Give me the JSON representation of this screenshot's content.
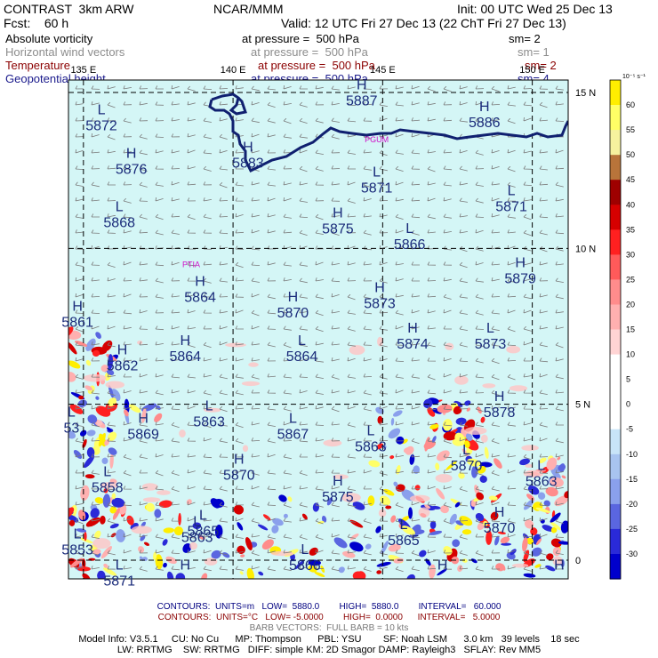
{
  "header": {
    "model": "CONTRAST  3km ARW",
    "org": "NCAR/MMM",
    "init": "Init: 00 UTC Wed 25 Dec 13",
    "fcst": "Fcst:    60 h",
    "valid": "Valid: 12 UTC Fri 27 Dec 13 (22 ChT Fri 27 Dec 13)"
  },
  "fields": [
    {
      "name": "Absolute vorticity",
      "pressure": "at pressure =  500 hPa",
      "sm": "sm= 2",
      "color": "#000000"
    },
    {
      "name": "Horizontal wind vectors",
      "pressure": "at pressure =  500 hPa",
      "sm": "sm= 1",
      "color": "#8c8c8c"
    },
    {
      "name": "Temperature",
      "pressure": "at pressure =  500 hPa",
      "sm": "sm= 2",
      "color": "#8b0000"
    },
    {
      "name": "Geopotential height",
      "pressure": "at pressure =  500 hPa",
      "sm": "sm= 4",
      "color": "#1a1a8c"
    }
  ],
  "footer": {
    "contours_height": "CONTOURS:  UNITS=m   LOW=  5880.0        HIGH=  5880.0        INTERVAL=   60.000",
    "contours_temp": "CONTOURS:  UNITS=°C   LOW= -5.0000        HIGH=  0.0000      INTERVAL=   5.0000",
    "barb": "BARB VECTORS:  FULL BARB = 10 kts",
    "model_info_1": "Model Info: V3.5.1     CU: No Cu      MP: Thompson      PBL: YSU        SF: Noah LSM      3.0 km   39 levels    18 sec",
    "model_info_2": "LW: RRTMG    SW: RRTMG   DIFF: simple KM: 2D Smagor DAMP: Rayleigh3   SFLAY: Rev MM5"
  },
  "chart_data": {
    "type": "heatmap",
    "lon_labels": [
      {
        "lon": 135,
        "text": "135 E"
      },
      {
        "lon": 140,
        "text": "140 E"
      },
      {
        "lon": 145,
        "text": "145 E"
      },
      {
        "lon": 150,
        "text": "150 E"
      }
    ],
    "lat_labels": [
      {
        "lat": 15,
        "text": "15 N"
      },
      {
        "lat": 10,
        "text": "10 N"
      },
      {
        "lat": 5,
        "text": "5 N"
      },
      {
        "lat": 0,
        "text": "0"
      }
    ],
    "lon_range": [
      134.5,
      151.2
    ],
    "lat_range": [
      -0.6,
      15.4
    ],
    "colorbar": {
      "unit": "10⁻⁵ s⁻¹",
      "levels": [
        {
          "label": "60",
          "color": "#ffee00"
        },
        {
          "label": "55",
          "color": "#ffff66"
        },
        {
          "label": "50",
          "color": "#f6f29e"
        },
        {
          "label": "45",
          "color": "#b8743a"
        },
        {
          "label": "40",
          "color": "#9e0000"
        },
        {
          "label": "35",
          "color": "#d60000"
        },
        {
          "label": "30",
          "color": "#ff2020"
        },
        {
          "label": "25",
          "color": "#ff5a5a"
        },
        {
          "label": "20",
          "color": "#ff8c8c"
        },
        {
          "label": "15",
          "color": "#ffb0b0"
        },
        {
          "label": "10",
          "color": "#ffd4d4"
        },
        {
          "label": "5",
          "color": "#ffffff"
        },
        {
          "label": "0",
          "color": "#ffffff"
        },
        {
          "label": "-5",
          "color": "#ffffff"
        },
        {
          "label": "-10",
          "color": "#c8e4f8"
        },
        {
          "label": "-15",
          "color": "#a8c4f0"
        },
        {
          "label": "-20",
          "color": "#8aa0ec"
        },
        {
          "label": "-25",
          "color": "#5a66e0"
        },
        {
          "label": "-30",
          "color": "#2a2ad8"
        },
        {
          "label": "",
          "color": "#0000cc"
        }
      ]
    },
    "background_color": "#d4f6f6",
    "height_contour": {
      "value": 5880,
      "color": "#102070"
    },
    "cities": [
      {
        "name": "PTIA",
        "lon": 138.6,
        "lat": 9.4
      },
      {
        "name": "PGUM",
        "lon": 144.8,
        "lat": 13.4
      }
    ],
    "extrema": [
      {
        "type": "L",
        "value": "5872",
        "lon": 135.6,
        "lat": 14.3
      },
      {
        "type": "H",
        "value": "5876",
        "lon": 136.6,
        "lat": 12.9
      },
      {
        "type": "H",
        "value": "5883",
        "lon": 140.5,
        "lat": 13.1
      },
      {
        "type": "H",
        "value": "5887",
        "lon": 144.3,
        "lat": 15.1
      },
      {
        "type": "H",
        "value": "5886",
        "lon": 148.4,
        "lat": 14.4
      },
      {
        "type": "L",
        "value": "5871",
        "lon": 144.8,
        "lat": 12.3
      },
      {
        "type": "L",
        "value": "5871",
        "lon": 149.3,
        "lat": 11.7
      },
      {
        "type": "L",
        "value": "5868",
        "lon": 136.2,
        "lat": 11.2
      },
      {
        "type": "H",
        "value": "5875",
        "lon": 143.5,
        "lat": 11.0
      },
      {
        "type": "L",
        "value": "5866",
        "lon": 145.9,
        "lat": 10.5
      },
      {
        "type": "H",
        "value": "5879",
        "lon": 149.6,
        "lat": 9.4
      },
      {
        "type": "H",
        "value": "5864",
        "lon": 138.9,
        "lat": 8.8
      },
      {
        "type": "H",
        "value": "5870",
        "lon": 142.0,
        "lat": 8.3
      },
      {
        "type": "H",
        "value": "5873",
        "lon": 144.9,
        "lat": 8.6
      },
      {
        "type": "H",
        "value": "5861",
        "lon": 134.8,
        "lat": 8.0
      },
      {
        "type": "H",
        "value": "5874",
        "lon": 146.0,
        "lat": 7.3
      },
      {
        "type": "L",
        "value": "5873",
        "lon": 148.6,
        "lat": 7.3
      },
      {
        "type": "H",
        "value": "5862",
        "lon": 136.3,
        "lat": 6.6
      },
      {
        "type": "H",
        "value": "5864",
        "lon": 138.4,
        "lat": 6.9
      },
      {
        "type": "L",
        "value": "5864",
        "lon": 142.3,
        "lat": 6.9
      },
      {
        "type": "H",
        "value": "5878",
        "lon": 148.9,
        "lat": 5.1
      },
      {
        "type": "H",
        "value": "5869",
        "lon": 137.0,
        "lat": 4.4
      },
      {
        "type": "L",
        "value": "5863",
        "lon": 139.2,
        "lat": 4.8
      },
      {
        "type": "L",
        "value": "5867",
        "lon": 142.0,
        "lat": 4.4
      },
      {
        "type": "L",
        "value": "5863",
        "lon": 144.6,
        "lat": 4.0
      },
      {
        "type": "L",
        "value": "5870",
        "lon": 147.8,
        "lat": 3.4
      },
      {
        "type": "L",
        "value": "5863",
        "lon": 150.3,
        "lat": 2.9
      },
      {
        "type": "L",
        "value": "5858",
        "lon": 135.8,
        "lat": 2.7
      },
      {
        "type": "H",
        "value": "5870",
        "lon": 140.2,
        "lat": 3.1
      },
      {
        "type": "H",
        "value": "5875",
        "lon": 143.5,
        "lat": 2.4
      },
      {
        "type": "L",
        "value": "5865",
        "lon": 145.7,
        "lat": 1.0
      },
      {
        "type": "H",
        "value": "5870",
        "lon": 148.9,
        "lat": 1.4
      },
      {
        "type": "L",
        "value": "5863",
        "lon": 138.8,
        "lat": 1.1
      },
      {
        "type": "L",
        "value": "5866",
        "lon": 142.4,
        "lat": 0.2
      },
      {
        "type": "L",
        "value": "5853",
        "lon": 134.8,
        "lat": 0.7
      },
      {
        "type": "L",
        "value": "5871",
        "lon": 136.2,
        "lat": -0.3
      },
      {
        "type": "H",
        "value": "",
        "lon": 138.4,
        "lat": -0.3
      },
      {
        "type": "H",
        "value": "",
        "lon": 147.0,
        "lat": -0.3
      },
      {
        "type": "H",
        "value": "",
        "lon": 150.9,
        "lat": -0.3
      },
      {
        "type": "L",
        "value": "5865",
        "lon": 139.0,
        "lat": 1.3
      },
      {
        "type": "L",
        "value": "53",
        "lon": 134.6,
        "lat": 4.6
      }
    ]
  }
}
